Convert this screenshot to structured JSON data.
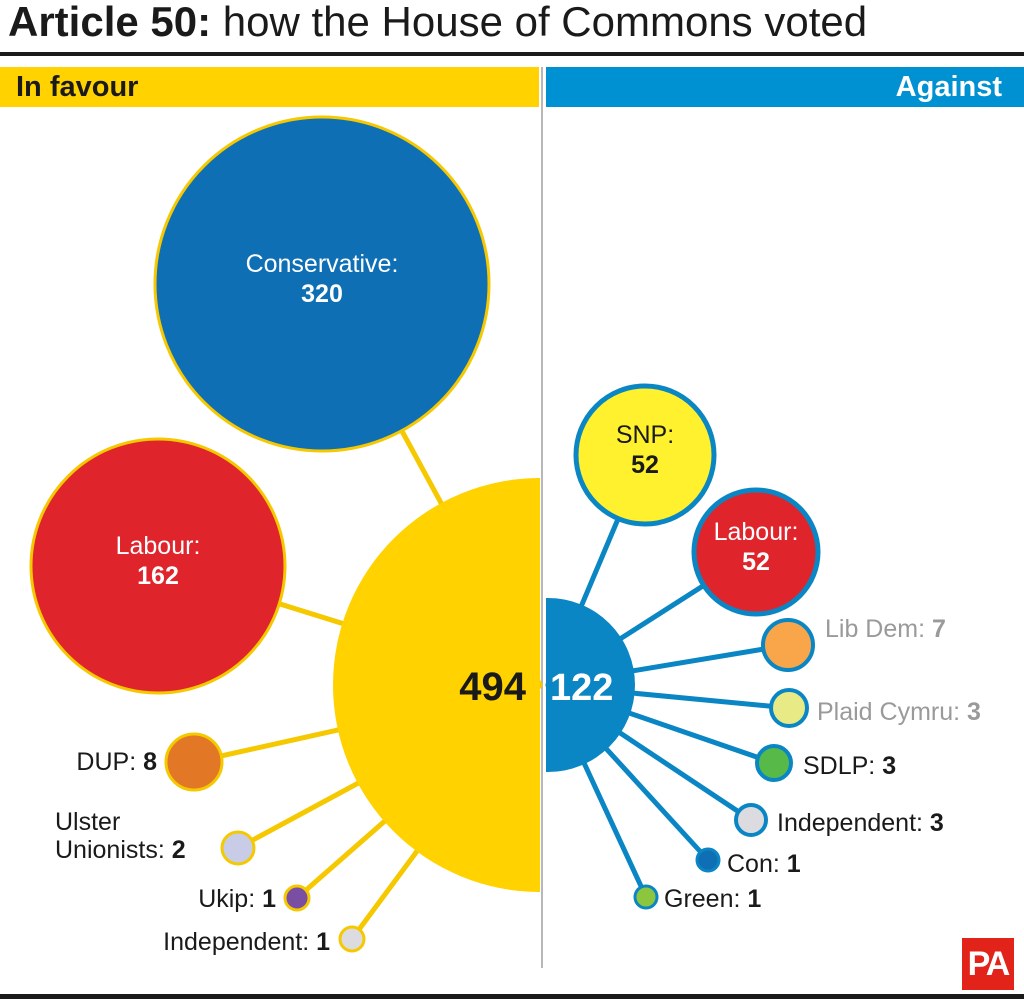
{
  "title": {
    "bold": "Article 50:",
    "rest": " how the House of Commons voted"
  },
  "colors": {
    "favour_band": "#ffd200",
    "against_band": "#0091d2",
    "favour_line": "#f5c800",
    "against_line": "#0a86c4",
    "divider": "#b8b8b8",
    "text": "#1a1a1a"
  },
  "chart_data": {
    "type": "bubble",
    "groups": [
      {
        "name": "In favour",
        "total": 494,
        "parties": [
          {
            "name": "Conservative:",
            "value": 320,
            "color": "#0f6fb5"
          },
          {
            "name": "Labour:",
            "value": 162,
            "color": "#e0242b"
          },
          {
            "name": "DUP:",
            "value": 8,
            "color": "#e27826"
          },
          {
            "name": "Ulster Unionists:",
            "value": 2,
            "color": "#c8cce6"
          },
          {
            "name": "Ukip:",
            "value": 1,
            "color": "#7a4ea3"
          },
          {
            "name": "Independent:",
            "value": 1,
            "color": "#dcdce0"
          }
        ]
      },
      {
        "name": "Against",
        "total": 122,
        "parties": [
          {
            "name": "SNP:",
            "value": 52,
            "color": "#fff12e"
          },
          {
            "name": "Labour:",
            "value": 52,
            "color": "#e0242b"
          },
          {
            "name": "Lib Dem:",
            "value": 7,
            "color": "#f9a54a"
          },
          {
            "name": "Plaid Cymru:",
            "value": 3,
            "color": "#e8ea86"
          },
          {
            "name": "SDLP:",
            "value": 3,
            "color": "#57b947"
          },
          {
            "name": "Independent:",
            "value": 3,
            "color": "#dcdce0"
          },
          {
            "name": "Con:",
            "value": 1,
            "color": "#0f6fb5"
          },
          {
            "name": "Green:",
            "value": 1,
            "color": "#8cc63f"
          }
        ]
      }
    ]
  },
  "logo": "PA"
}
